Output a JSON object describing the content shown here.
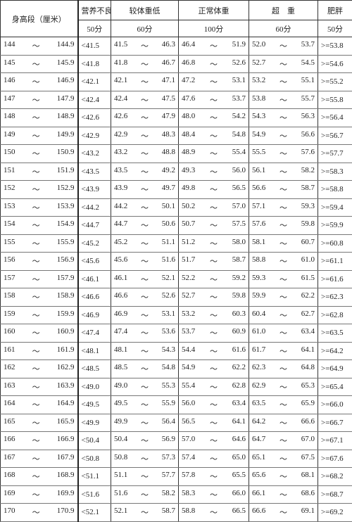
{
  "header": {
    "height": "身高段（厘米）",
    "columns": [
      {
        "name": "营养不良",
        "score": "50分"
      },
      {
        "name": "较体重低",
        "score": "60分"
      },
      {
        "name": "正常体重",
        "score": "100分"
      },
      {
        "name": "超　重",
        "score": "60分"
      },
      {
        "name": "肥胖",
        "score": "50分"
      }
    ]
  },
  "table": {
    "separator": "～",
    "rows": [
      [
        "144",
        "144.9",
        "<41.5",
        "41.5",
        "46.3",
        "46.4",
        "51.9",
        "52.0",
        "53.7",
        ">=53.8"
      ],
      [
        "145",
        "145.9",
        "<41.8",
        "41.8",
        "46.7",
        "46.8",
        "52.6",
        "52.7",
        "54.5",
        ">=54.6"
      ],
      [
        "146",
        "146.9",
        "<42.1",
        "42.1",
        "47.1",
        "47.2",
        "53.1",
        "53.2",
        "55.1",
        ">=55.2"
      ],
      [
        "147",
        "147.9",
        "<42.4",
        "42.4",
        "47.5",
        "47.6",
        "53.7",
        "53.8",
        "55.7",
        ">=55.8"
      ],
      [
        "148",
        "148.9",
        "<42.6",
        "42.6",
        "47.9",
        "48.0",
        "54.2",
        "54.3",
        "56.3",
        ">=56.4"
      ],
      [
        "149",
        "149.9",
        "<42.9",
        "42.9",
        "48.3",
        "48.4",
        "54.8",
        "54.9",
        "56.6",
        ">=56.7"
      ],
      [
        "150",
        "150.9",
        "<43.2",
        "43.2",
        "48.8",
        "48.9",
        "55.4",
        "55.5",
        "57.6",
        ">=57.7"
      ],
      [
        "151",
        "151.9",
        "<43.5",
        "43.5",
        "49.2",
        "49.3",
        "56.0",
        "56.1",
        "58.2",
        ">=58.3"
      ],
      [
        "152",
        "152.9",
        "<43.9",
        "43.9",
        "49.7",
        "49.8",
        "56.5",
        "56.6",
        "58.7",
        ">=58.8"
      ],
      [
        "153",
        "153.9",
        "<44.2",
        "44.2",
        "50.1",
        "50.2",
        "57.0",
        "57.1",
        "59.3",
        ">=59.4"
      ],
      [
        "154",
        "154.9",
        "<44.7",
        "44.7",
        "50.6",
        "50.7",
        "57.5",
        "57.6",
        "59.8",
        ">=59.9"
      ],
      [
        "155",
        "155.9",
        "<45.2",
        "45.2",
        "51.1",
        "51.2",
        "58.0",
        "58.1",
        "60.7",
        ">=60.8"
      ],
      [
        "156",
        "156.9",
        "<45.6",
        "45.6",
        "51.6",
        "51.7",
        "58.7",
        "58.8",
        "61.0",
        ">=61.1"
      ],
      [
        "157",
        "157.9",
        "<46.1",
        "46.1",
        "52.1",
        "52.2",
        "59.2",
        "59.3",
        "61.5",
        ">=61.6"
      ],
      [
        "158",
        "158.9",
        "<46.6",
        "46.6",
        "52.6",
        "52.7",
        "59.8",
        "59.9",
        "62.2",
        ">=62.3"
      ],
      [
        "159",
        "159.9",
        "<46.9",
        "46.9",
        "53.1",
        "53.2",
        "60.3",
        "60.4",
        "62.7",
        ">=62.8"
      ],
      [
        "160",
        "160.9",
        "<47.4",
        "47.4",
        "53.6",
        "53.7",
        "60.9",
        "61.0",
        "63.4",
        ">=63.5"
      ],
      [
        "161",
        "161.9",
        "<48.1",
        "48.1",
        "54.3",
        "54.4",
        "61.6",
        "61.7",
        "64.1",
        ">=64.2"
      ],
      [
        "162",
        "162.9",
        "<48.5",
        "48.5",
        "54.8",
        "54.9",
        "62.2",
        "62.3",
        "64.8",
        ">=64.9"
      ],
      [
        "163",
        "163.9",
        "<49.0",
        "49.0",
        "55.3",
        "55.4",
        "62.8",
        "62.9",
        "65.3",
        ">=65.4"
      ],
      [
        "164",
        "164.9",
        "<49.5",
        "49.5",
        "55.9",
        "56.0",
        "63.4",
        "63.5",
        "65.9",
        ">=66.0"
      ],
      [
        "165",
        "165.9",
        "<49.9",
        "49.9",
        "56.4",
        "56.5",
        "64.1",
        "64.2",
        "66.6",
        ">=66.7"
      ],
      [
        "166",
        "166.9",
        "<50.4",
        "50.4",
        "56.9",
        "57.0",
        "64.6",
        "64.7",
        "67.0",
        ">=67.1"
      ],
      [
        "167",
        "167.9",
        "<50.8",
        "50.8",
        "57.3",
        "57.4",
        "65.0",
        "65.1",
        "67.5",
        ">=67.6"
      ],
      [
        "168",
        "168.9",
        "<51.1",
        "51.1",
        "57.7",
        "57.8",
        "65.5",
        "65.6",
        "68.1",
        ">=68.2"
      ],
      [
        "169",
        "169.9",
        "<51.6",
        "51.6",
        "58.2",
        "58.3",
        "66.0",
        "66.1",
        "68.6",
        ">=68.7"
      ],
      [
        "170",
        "170.9",
        "<52.1",
        "52.1",
        "58.7",
        "58.8",
        "66.5",
        "66.6",
        "69.1",
        ">=69.2"
      ]
    ]
  }
}
